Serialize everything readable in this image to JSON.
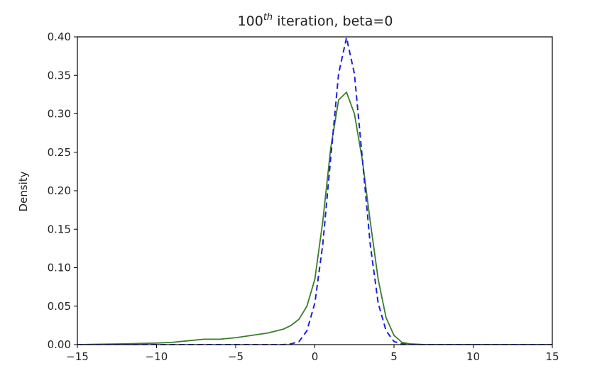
{
  "chart_data": {
    "type": "line",
    "title": {
      "prefix": "100",
      "superscript": "th",
      "suffix": " iteration, beta=0"
    },
    "xlabel": "",
    "ylabel": "Density",
    "xlim": [
      -15,
      15
    ],
    "ylim": [
      0,
      0.4
    ],
    "xticks": [
      -15,
      -10,
      -5,
      0,
      5,
      10,
      15
    ],
    "xtick_labels": [
      "−15",
      "−10",
      "−5",
      "0",
      "5",
      "10",
      "15"
    ],
    "yticks": [
      0,
      0.05,
      0.1,
      0.15,
      0.2,
      0.25,
      0.3,
      0.35,
      0.4
    ],
    "ytick_labels": [
      "0.00",
      "0.05",
      "0.10",
      "0.15",
      "0.20",
      "0.25",
      "0.30",
      "0.35",
      "0.40"
    ],
    "grid": false,
    "series": [
      {
        "style": "solid",
        "color": "#3a7d2c",
        "x": [
          -15,
          -12,
          -10,
          -9,
          -8,
          -7,
          -6,
          -5,
          -4,
          -3,
          -2,
          -1.5,
          -1,
          -0.5,
          0,
          0.5,
          1,
          1.5,
          2,
          2.5,
          3,
          3.5,
          4,
          4.5,
          5,
          5.5,
          6,
          7,
          10,
          15
        ],
        "y": [
          0.0,
          0.001,
          0.002,
          0.003,
          0.005,
          0.007,
          0.007,
          0.009,
          0.012,
          0.015,
          0.02,
          0.025,
          0.033,
          0.05,
          0.085,
          0.16,
          0.255,
          0.318,
          0.328,
          0.3,
          0.24,
          0.16,
          0.085,
          0.035,
          0.012,
          0.003,
          0.001,
          0.0,
          0.0,
          0.0
        ]
      },
      {
        "style": "dashed",
        "color": "#1f1fe0",
        "x": [
          -15,
          -2,
          -1.5,
          -1,
          -0.5,
          0,
          0.5,
          1,
          1.5,
          2,
          2.5,
          3,
          3.5,
          4,
          4.5,
          5,
          5.5,
          6,
          10,
          15
        ],
        "y": [
          0.0,
          0.0,
          0.001,
          0.004,
          0.018,
          0.054,
          0.13,
          0.242,
          0.352,
          0.399,
          0.352,
          0.242,
          0.13,
          0.054,
          0.018,
          0.004,
          0.001,
          0.0,
          0.0,
          0.0
        ]
      }
    ]
  }
}
